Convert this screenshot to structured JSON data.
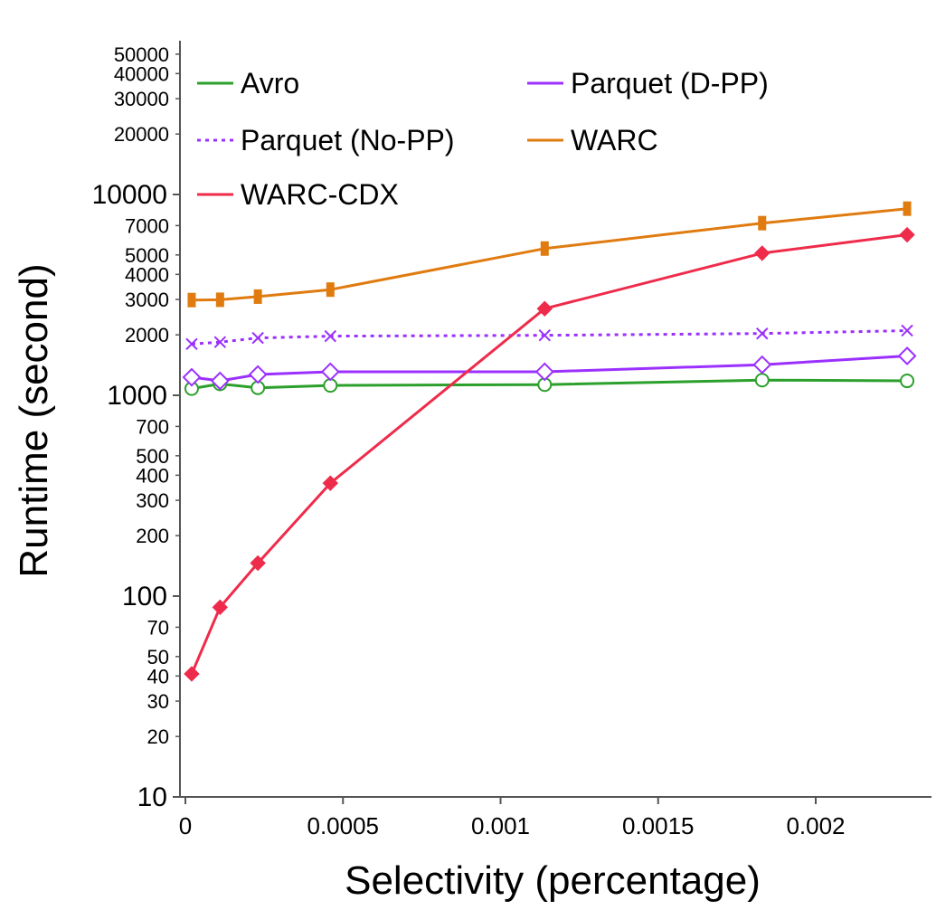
{
  "chart_data": {
    "type": "line",
    "title": "",
    "xlabel": "Selectivity (percentage)",
    "ylabel": "Runtime (second)",
    "yscale": "log",
    "xlim": [
      0,
      0.0023
    ],
    "ylim": [
      10,
      60000
    ],
    "grid": false,
    "legend_position": "top",
    "x": [
      2e-05,
      0.00011,
      0.00023,
      0.00046,
      0.00114,
      0.00183,
      0.00229
    ],
    "x_ticks": [
      0,
      0.0005,
      0.001,
      0.0015,
      0.002
    ],
    "x_tick_labels": [
      "0",
      "0.0005",
      "0.001",
      "0.0015",
      "0.002"
    ],
    "y_ticks_major": [
      10,
      100,
      1000,
      10000
    ],
    "y_tick_labels_major": [
      "10",
      "100",
      "1000",
      "10000"
    ],
    "y_ticks_minor": [
      20,
      30,
      40,
      50,
      70,
      200,
      300,
      400,
      500,
      700,
      2000,
      3000,
      4000,
      5000,
      7000,
      20000,
      30000,
      40000,
      50000
    ],
    "y_tick_labels_minor": [
      "20",
      "30",
      "40",
      "50",
      "70",
      "200",
      "300",
      "400",
      "500",
      "700",
      "2000",
      "3000",
      "4000",
      "5000",
      "7000",
      "20000",
      "30000",
      "40000",
      "50000"
    ],
    "series": [
      {
        "name": "Avro",
        "color": "#2ca02c",
        "marker": "circle-open",
        "dash": false,
        "values": [
          1080,
          1140,
          1090,
          1120,
          1130,
          1190,
          1180
        ]
      },
      {
        "name": "Parquet (D-PP)",
        "color": "#9b30ff",
        "marker": "diamond-open",
        "dash": false,
        "values": [
          1230,
          1180,
          1270,
          1310,
          1310,
          1420,
          1570
        ]
      },
      {
        "name": "Parquet (No-PP)",
        "color": "#9b30ff",
        "marker": "x",
        "dash": true,
        "values": [
          1800,
          1840,
          1930,
          1970,
          1990,
          2030,
          2100
        ]
      },
      {
        "name": "WARC",
        "color": "#e07b10",
        "marker": "bar",
        "dash": false,
        "values": [
          2980,
          2990,
          3100,
          3360,
          5380,
          7200,
          8500
        ]
      },
      {
        "name": "WARC-CDX",
        "color": "#ef2b4b",
        "marker": "diamond-filled",
        "dash": false,
        "values": [
          41,
          88,
          146,
          365,
          2700,
          5100,
          6300
        ]
      }
    ]
  }
}
